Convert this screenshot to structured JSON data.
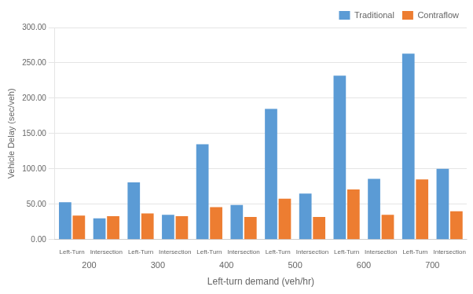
{
  "chart_data": {
    "type": "bar",
    "categories": [
      "Left-Turn",
      "Intersection",
      "Left-Turn",
      "Intersection",
      "Left-Turn",
      "Intersection",
      "Left-Turn",
      "Intersection",
      "Left-Turn",
      "Intersection",
      "Left-Turn",
      "Intersection"
    ],
    "groups": [
      200,
      300,
      400,
      500,
      600,
      700
    ],
    "series": [
      {
        "name": "Traditional",
        "color": "#5B9BD5",
        "values": [
          53.0,
          30.0,
          81.0,
          35.0,
          135.0,
          49.0,
          185.0,
          65.0,
          232.0,
          86.0,
          263.0,
          100.0
        ]
      },
      {
        "name": "Contraflow",
        "color": "#ED7D31",
        "values": [
          34.0,
          33.0,
          37.0,
          33.0,
          46.0,
          32.0,
          58.0,
          32.0,
          71.0,
          35.0,
          85.0,
          40.0
        ]
      }
    ],
    "xlabel": "Left-turn demand (veh/hr)",
    "ylabel": "Vehicle Delay (sec/veh)",
    "ylim": [
      0,
      300
    ],
    "yticks": [
      {
        "value": 0,
        "label": "0.00"
      },
      {
        "value": 50,
        "label": "50.00"
      },
      {
        "value": 100,
        "label": "100.00"
      },
      {
        "value": 150,
        "label": "150.00"
      },
      {
        "value": 200,
        "label": "200.00"
      },
      {
        "value": 250,
        "label": "250.00"
      },
      {
        "value": 300,
        "label": "300.00"
      }
    ],
    "grid": true,
    "legend": "upper right"
  }
}
